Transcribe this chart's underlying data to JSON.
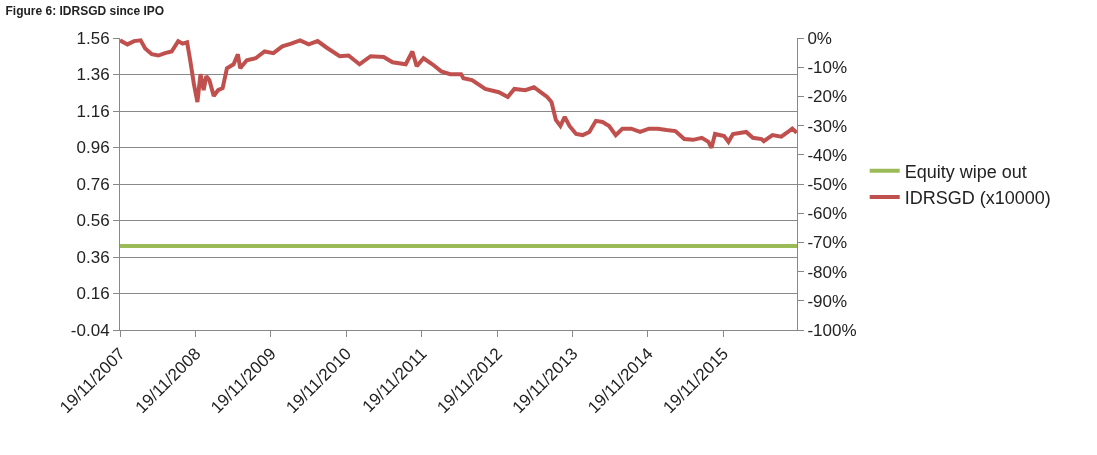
{
  "chart_data": {
    "type": "line",
    "title": "Figure 6: IDRSGD since IPO",
    "x": [
      "2007-11-19",
      "2007-12-25",
      "2008-01-26",
      "2008-02-27",
      "2008-03-20",
      "2008-04-21",
      "2008-05-23",
      "2008-06-24",
      "2008-07-26",
      "2008-08-27",
      "2008-09-17",
      "2008-10-09",
      "2008-10-24",
      "2008-11-11",
      "2008-11-28",
      "2008-12-13",
      "2008-12-28",
      "2009-01-10",
      "2009-01-25",
      "2009-02-15",
      "2009-03-08",
      "2009-03-30",
      "2009-04-20",
      "2009-05-22",
      "2009-06-12",
      "2009-06-23",
      "2009-07-25",
      "2009-09-06",
      "2009-10-19",
      "2009-12-01",
      "2010-01-13",
      "2010-02-25",
      "2010-04-09",
      "2010-05-21",
      "2010-07-03",
      "2010-08-15",
      "2010-10-18",
      "2010-11-30",
      "2011-01-22",
      "2011-03-17",
      "2011-05-19",
      "2011-07-01",
      "2011-09-03",
      "2011-10-05",
      "2011-10-26",
      "2011-11-28",
      "2012-01-10",
      "2012-02-22",
      "2012-04-05",
      "2012-05-28",
      "2012-06-08",
      "2012-07-20",
      "2012-09-22",
      "2012-11-27",
      "2013-01-09",
      "2013-02-10",
      "2013-04-04",
      "2013-05-16",
      "2013-06-17",
      "2013-07-19",
      "2013-08-09",
      "2013-08-30",
      "2013-09-21",
      "2013-10-12",
      "2013-11-04",
      "2013-12-06",
      "2014-01-07",
      "2014-02-08",
      "2014-03-12",
      "2014-04-13",
      "2014-05-15",
      "2014-06-16",
      "2014-07-18",
      "2014-08-30",
      "2014-10-12",
      "2014-11-24",
      "2015-01-06",
      "2015-02-17",
      "2015-04-01",
      "2015-05-14",
      "2015-06-26",
      "2015-08-07",
      "2015-09-08",
      "2015-09-23",
      "2015-10-10",
      "2015-11-23",
      "2015-12-14",
      "2016-01-05",
      "2016-03-09",
      "2016-04-10",
      "2016-05-22",
      "2016-06-02",
      "2016-07-14",
      "2016-08-26",
      "2016-09-27",
      "2016-10-18",
      "2016-11-09"
    ],
    "series": [
      {
        "name": "Equity wipe out",
        "color": "#9bbb59",
        "x": [
          "2007-11-19",
          "2016-11-10"
        ],
        "values": [
          0.42,
          0.42
        ]
      },
      {
        "name": "IDRSGD (x10000)",
        "color": "#c0504d",
        "values": [
          1.547,
          1.525,
          1.543,
          1.547,
          1.503,
          1.471,
          1.464,
          1.477,
          1.486,
          1.543,
          1.529,
          1.536,
          1.438,
          1.307,
          1.209,
          1.362,
          1.274,
          1.351,
          1.329,
          1.242,
          1.274,
          1.285,
          1.394,
          1.416,
          1.471,
          1.394,
          1.438,
          1.449,
          1.486,
          1.477,
          1.514,
          1.529,
          1.547,
          1.525,
          1.543,
          1.508,
          1.46,
          1.464,
          1.416,
          1.46,
          1.456,
          1.427,
          1.416,
          1.486,
          1.405,
          1.449,
          1.416,
          1.377,
          1.362,
          1.362,
          1.34,
          1.329,
          1.281,
          1.263,
          1.237,
          1.281,
          1.274,
          1.29,
          1.263,
          1.237,
          1.209,
          1.111,
          1.078,
          1.128,
          1.078,
          1.034,
          1.028,
          1.045,
          1.106,
          1.1,
          1.078,
          1.028,
          1.063,
          1.063,
          1.045,
          1.063,
          1.063,
          1.056,
          1.05,
          1.006,
          1.002,
          1.013,
          0.991,
          0.958,
          1.034,
          1.023,
          0.991,
          1.034,
          1.045,
          1.013,
          1.006,
          0.995,
          1.028,
          1.019,
          1.045,
          1.063,
          1.041
        ]
      }
    ],
    "ylim": [
      -0.04,
      1.56
    ],
    "yticks": [
      -0.04,
      0.16,
      0.36,
      0.56,
      0.76,
      0.96,
      1.16,
      1.36,
      1.56
    ],
    "y2lim": [
      -100,
      0
    ],
    "y2ticks": [
      {
        "value": 0,
        "label": "0%"
      },
      {
        "value": -10,
        "label": "-10%"
      },
      {
        "value": -20,
        "label": "-20%"
      },
      {
        "value": -30,
        "label": "-30%"
      },
      {
        "value": -40,
        "label": "-40%"
      },
      {
        "value": -50,
        "label": "-50%"
      },
      {
        "value": -60,
        "label": "-60%"
      },
      {
        "value": -70,
        "label": "-70%"
      },
      {
        "value": -80,
        "label": "-80%"
      },
      {
        "value": -90,
        "label": "-90%"
      },
      {
        "value": -100,
        "label": "-100%"
      }
    ],
    "xlim": [
      "2007-11-19",
      "2016-11-10"
    ],
    "xticks": [
      {
        "value": "2007-11-19",
        "label": "19/11/2007"
      },
      {
        "value": "2008-11-19",
        "label": "19/11/2008"
      },
      {
        "value": "2009-11-19",
        "label": "19/11/2009"
      },
      {
        "value": "2010-11-19",
        "label": "19/11/2010"
      },
      {
        "value": "2011-11-19",
        "label": "19/11/2011"
      },
      {
        "value": "2012-11-19",
        "label": "19/11/2012"
      },
      {
        "value": "2013-11-19",
        "label": "19/11/2013"
      },
      {
        "value": "2014-11-19",
        "label": "19/11/2014"
      },
      {
        "value": "2015-11-19",
        "label": "19/11/2015"
      }
    ],
    "grid": "y",
    "legend": "right",
    "line_style": "solid"
  }
}
